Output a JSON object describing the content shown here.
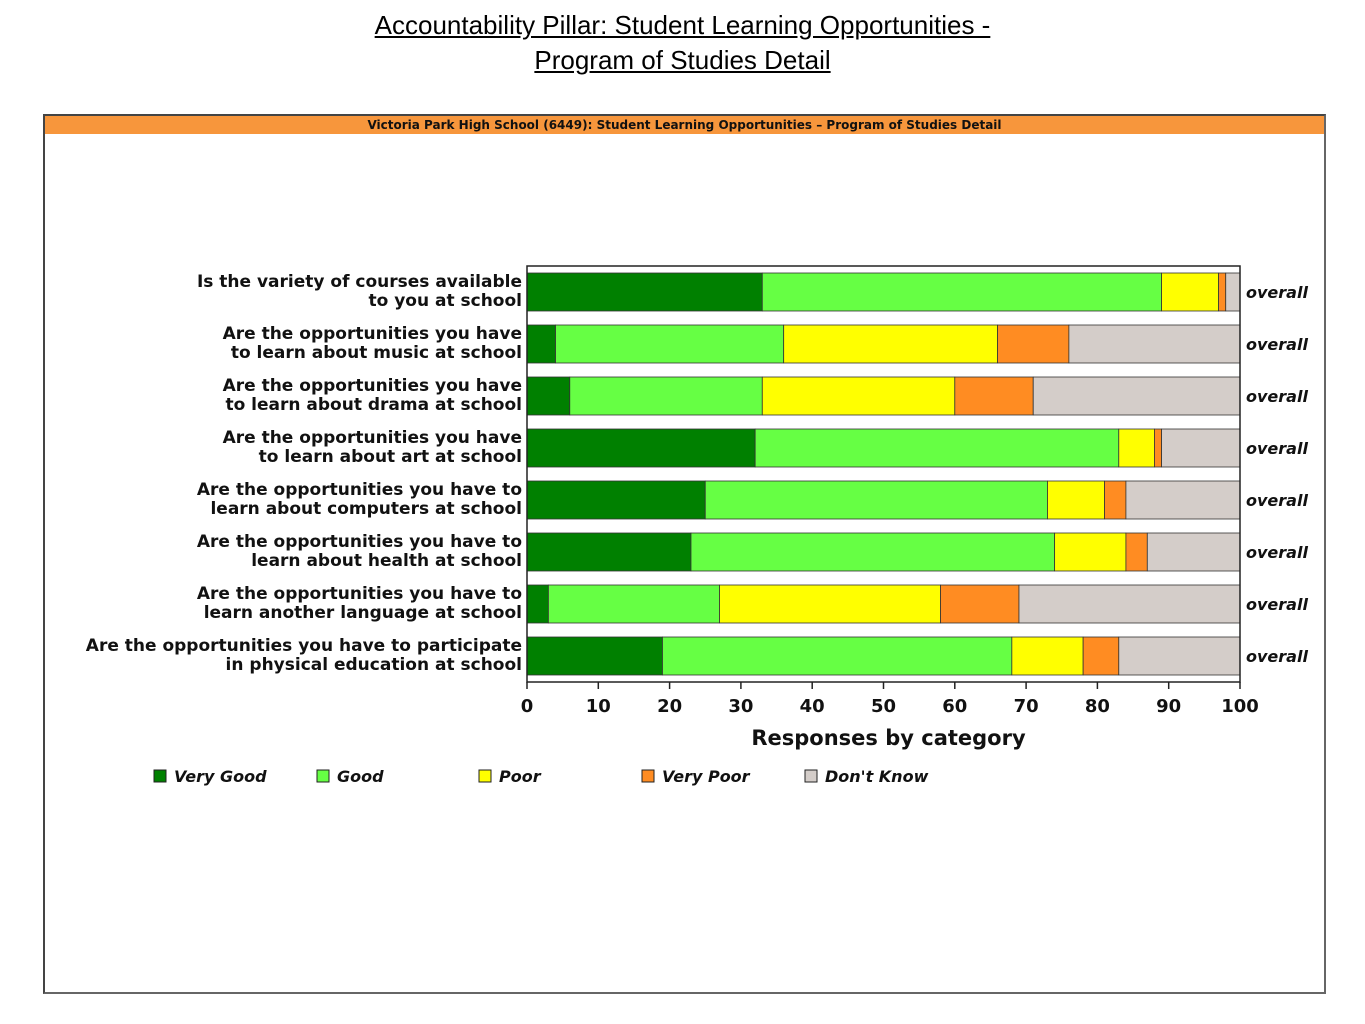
{
  "slide": {
    "title_line1": "Accountability Pillar:  Student Learning Opportunities -",
    "title_line2": "Program of Studies Detail"
  },
  "chart_data": {
    "type": "bar",
    "orientation": "horizontal",
    "stacked": true,
    "title": "Victoria Park High School (6449): Student Learning Opportunities – Program of Studies Detail",
    "xlabel": "Responses by category",
    "xlim": [
      0,
      100
    ],
    "xticks": [
      0,
      10,
      20,
      30,
      40,
      50,
      60,
      70,
      80,
      90,
      100
    ],
    "row_tag": "overall",
    "legend_position": "bottom",
    "categories": [
      [
        "Is the variety of courses available",
        "to you at school"
      ],
      [
        "Are the opportunities you have",
        "to learn about music at school"
      ],
      [
        "Are the opportunities you have",
        "to learn about drama at school"
      ],
      [
        "Are the opportunities you have",
        "to learn about art at school"
      ],
      [
        "Are the opportunities you have to",
        "learn about computers at school"
      ],
      [
        "Are the opportunities you have to",
        "learn about health at school"
      ],
      [
        "Are the opportunities you have to",
        "learn another language at school"
      ],
      [
        "Are the opportunities you have to participate",
        "in physical education at school"
      ]
    ],
    "series": [
      {
        "name": "Very Good",
        "color": "#008000",
        "values": [
          33,
          4,
          6,
          32,
          25,
          23,
          3,
          19
        ]
      },
      {
        "name": "Good",
        "color": "#66ff44",
        "values": [
          56,
          32,
          27,
          51,
          48,
          51,
          24,
          49
        ]
      },
      {
        "name": "Poor",
        "color": "#ffff00",
        "values": [
          8,
          30,
          27,
          5,
          8,
          10,
          31,
          10
        ]
      },
      {
        "name": "Very Poor",
        "color": "#ff8c22",
        "values": [
          1,
          10,
          11,
          1,
          3,
          3,
          11,
          5
        ]
      },
      {
        "name": "Don't Know",
        "color": "#d4cdc9",
        "values": [
          2,
          24,
          29,
          11,
          16,
          13,
          31,
          17
        ]
      }
    ]
  }
}
